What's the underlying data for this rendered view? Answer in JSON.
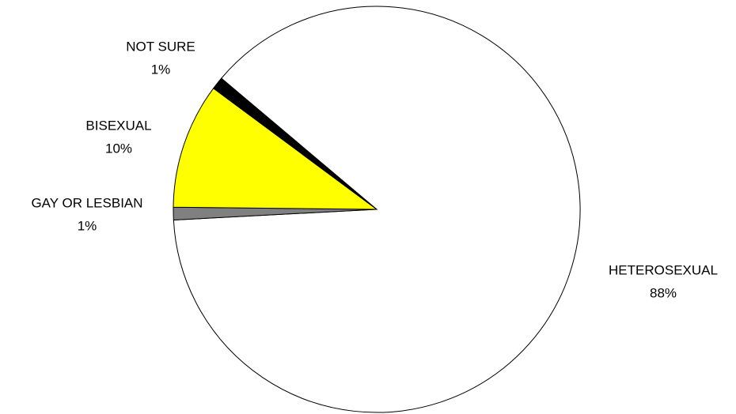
{
  "chart_data": {
    "type": "pie",
    "categories": [
      "HETEROSEXUAL",
      "GAY OR LESBIAN",
      "BISEXUAL",
      "NOT SURE"
    ],
    "values": [
      88,
      1,
      10,
      1
    ],
    "value_labels": [
      "88%",
      "1%",
      "10%",
      "1%"
    ],
    "colors": [
      "#ffffff",
      "#808080",
      "#ffff00",
      "#000000"
    ]
  }
}
